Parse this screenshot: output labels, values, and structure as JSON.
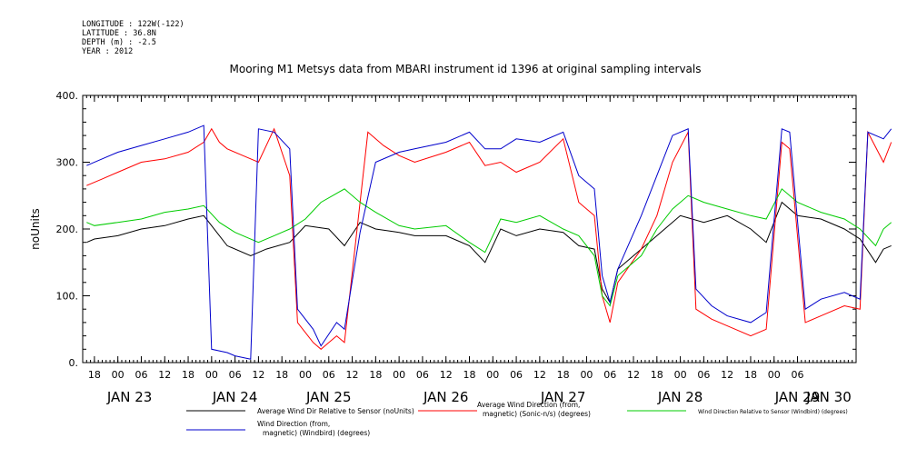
{
  "meta": {
    "longitude": "LONGITUDE : 122W(-122)",
    "latitude": "LATITUDE : 36.8N",
    "depth": "DEPTH (m) : -2.5",
    "year": "YEAR : 2012"
  },
  "chart_data": {
    "type": "line",
    "title": "Mooring M1 Metsys data from MBARI instrument id 1396 at original sampling intervals",
    "ylabel": "noUnits",
    "ylim": [
      0,
      400
    ],
    "yticks": [
      0,
      100,
      200,
      300,
      400
    ],
    "ytick_labels": [
      "0.",
      "100.",
      "200.",
      "300.",
      "400."
    ],
    "xlim_hours": [
      -9,
      189
    ],
    "x_hour_ticks": [
      "18",
      "00",
      "06",
      "12",
      "18",
      "00",
      "06",
      "12",
      "18",
      "00",
      "06",
      "12",
      "18",
      "00",
      "06",
      "12",
      "18",
      "00",
      "06",
      "12",
      "18",
      "00",
      "06",
      "12",
      "18",
      "00",
      "06",
      "12",
      "18",
      "00",
      "06"
    ],
    "day_labels": [
      {
        "label": "JAN 23",
        "hour": 0
      },
      {
        "label": "JAN 24",
        "hour": 24
      },
      {
        "label": "JAN 25",
        "hour": 54
      },
      {
        "label": "JAN 26",
        "hour": 84
      },
      {
        "label": "JAN 27",
        "hour": 114
      },
      {
        "label": "JAN 28",
        "hour": 144
      },
      {
        "label": "JAN 29",
        "hour": 174
      },
      {
        "label": "JAN 30",
        "hour": 198
      }
    ],
    "series": [
      {
        "name": "Average Wind Dir Relative to Sensor (noUnits)",
        "color": "#000000",
        "points": [
          [
            -8,
            180
          ],
          [
            -6,
            185
          ],
          [
            0,
            190
          ],
          [
            6,
            200
          ],
          [
            12,
            205
          ],
          [
            18,
            215
          ],
          [
            22,
            220
          ],
          [
            28,
            175
          ],
          [
            34,
            160
          ],
          [
            38,
            170
          ],
          [
            44,
            180
          ],
          [
            48,
            205
          ],
          [
            54,
            200
          ],
          [
            58,
            175
          ],
          [
            62,
            210
          ],
          [
            66,
            200
          ],
          [
            72,
            195
          ],
          [
            76,
            190
          ],
          [
            84,
            190
          ],
          [
            90,
            175
          ],
          [
            94,
            150
          ],
          [
            98,
            200
          ],
          [
            102,
            190
          ],
          [
            108,
            200
          ],
          [
            114,
            195
          ],
          [
            118,
            175
          ],
          [
            122,
            170
          ],
          [
            124,
            110
          ],
          [
            126,
            90
          ],
          [
            128,
            140
          ],
          [
            134,
            170
          ],
          [
            140,
            200
          ],
          [
            144,
            220
          ],
          [
            150,
            210
          ],
          [
            156,
            220
          ],
          [
            162,
            200
          ],
          [
            166,
            180
          ],
          [
            170,
            240
          ],
          [
            174,
            220
          ],
          [
            180,
            215
          ],
          [
            186,
            200
          ],
          [
            190,
            185
          ],
          [
            194,
            150
          ],
          [
            196,
            170
          ],
          [
            198,
            175
          ]
        ]
      },
      {
        "name": "Average Wind Direction (from, magnetic) (Sonic-n/s) (degrees)",
        "color": "#ff0000",
        "points": [
          [
            -8,
            265
          ],
          [
            -4,
            275
          ],
          [
            0,
            285
          ],
          [
            6,
            300
          ],
          [
            12,
            305
          ],
          [
            18,
            315
          ],
          [
            22,
            330
          ],
          [
            24,
            350
          ],
          [
            26,
            330
          ],
          [
            28,
            320
          ],
          [
            32,
            310
          ],
          [
            36,
            300
          ],
          [
            40,
            350
          ],
          [
            44,
            280
          ],
          [
            46,
            60
          ],
          [
            50,
            30
          ],
          [
            52,
            20
          ],
          [
            56,
            40
          ],
          [
            58,
            30
          ],
          [
            64,
            345
          ],
          [
            68,
            325
          ],
          [
            72,
            310
          ],
          [
            76,
            300
          ],
          [
            84,
            315
          ],
          [
            90,
            330
          ],
          [
            94,
            295
          ],
          [
            98,
            300
          ],
          [
            102,
            285
          ],
          [
            108,
            300
          ],
          [
            114,
            335
          ],
          [
            118,
            240
          ],
          [
            122,
            220
          ],
          [
            124,
            100
          ],
          [
            126,
            60
          ],
          [
            128,
            120
          ],
          [
            134,
            170
          ],
          [
            138,
            220
          ],
          [
            142,
            300
          ],
          [
            146,
            345
          ],
          [
            148,
            80
          ],
          [
            152,
            65
          ],
          [
            156,
            55
          ],
          [
            162,
            40
          ],
          [
            166,
            50
          ],
          [
            170,
            330
          ],
          [
            172,
            320
          ],
          [
            176,
            60
          ],
          [
            180,
            70
          ],
          [
            186,
            85
          ],
          [
            190,
            80
          ],
          [
            192,
            345
          ],
          [
            196,
            300
          ],
          [
            198,
            330
          ]
        ]
      },
      {
        "name": "Wind Direction Relative to Sensor (Windbird) (degrees)",
        "color": "#00cc00",
        "points": [
          [
            -8,
            210
          ],
          [
            -6,
            205
          ],
          [
            0,
            210
          ],
          [
            6,
            215
          ],
          [
            12,
            225
          ],
          [
            18,
            230
          ],
          [
            22,
            235
          ],
          [
            26,
            210
          ],
          [
            30,
            195
          ],
          [
            36,
            180
          ],
          [
            40,
            190
          ],
          [
            44,
            200
          ],
          [
            48,
            215
          ],
          [
            52,
            240
          ],
          [
            58,
            260
          ],
          [
            62,
            240
          ],
          [
            66,
            225
          ],
          [
            72,
            205
          ],
          [
            76,
            200
          ],
          [
            84,
            205
          ],
          [
            90,
            180
          ],
          [
            94,
            165
          ],
          [
            98,
            215
          ],
          [
            102,
            210
          ],
          [
            108,
            220
          ],
          [
            114,
            200
          ],
          [
            118,
            190
          ],
          [
            122,
            160
          ],
          [
            124,
            100
          ],
          [
            126,
            85
          ],
          [
            128,
            130
          ],
          [
            134,
            160
          ],
          [
            138,
            200
          ],
          [
            142,
            230
          ],
          [
            146,
            250
          ],
          [
            150,
            240
          ],
          [
            156,
            230
          ],
          [
            162,
            220
          ],
          [
            166,
            215
          ],
          [
            170,
            260
          ],
          [
            174,
            240
          ],
          [
            180,
            225
          ],
          [
            186,
            215
          ],
          [
            190,
            200
          ],
          [
            194,
            175
          ],
          [
            196,
            200
          ],
          [
            198,
            210
          ]
        ]
      },
      {
        "name": "Wind Direction (from, magnetic) (Windbird) (degrees)",
        "color": "#0000cc",
        "points": [
          [
            -8,
            295
          ],
          [
            -4,
            305
          ],
          [
            0,
            315
          ],
          [
            6,
            325
          ],
          [
            12,
            335
          ],
          [
            18,
            345
          ],
          [
            22,
            355
          ],
          [
            24,
            20
          ],
          [
            28,
            15
          ],
          [
            30,
            10
          ],
          [
            34,
            5
          ],
          [
            36,
            350
          ],
          [
            40,
            345
          ],
          [
            44,
            320
          ],
          [
            46,
            80
          ],
          [
            50,
            50
          ],
          [
            52,
            25
          ],
          [
            56,
            60
          ],
          [
            58,
            50
          ],
          [
            62,
            195
          ],
          [
            66,
            300
          ],
          [
            72,
            315
          ],
          [
            76,
            320
          ],
          [
            84,
            330
          ],
          [
            90,
            345
          ],
          [
            94,
            320
          ],
          [
            98,
            320
          ],
          [
            102,
            335
          ],
          [
            108,
            330
          ],
          [
            114,
            345
          ],
          [
            118,
            280
          ],
          [
            122,
            260
          ],
          [
            124,
            130
          ],
          [
            126,
            90
          ],
          [
            128,
            140
          ],
          [
            134,
            220
          ],
          [
            138,
            280
          ],
          [
            142,
            340
          ],
          [
            146,
            350
          ],
          [
            148,
            110
          ],
          [
            152,
            85
          ],
          [
            156,
            70
          ],
          [
            162,
            60
          ],
          [
            166,
            75
          ],
          [
            170,
            350
          ],
          [
            172,
            345
          ],
          [
            176,
            80
          ],
          [
            180,
            95
          ],
          [
            186,
            105
          ],
          [
            190,
            95
          ],
          [
            192,
            345
          ],
          [
            196,
            335
          ],
          [
            198,
            350
          ]
        ]
      }
    ],
    "legend": {
      "placement": "bottom",
      "entries": [
        {
          "label_lines": [
            "Average Wind Dir Relative to Sensor (noUnits)"
          ],
          "color": "#000000"
        },
        {
          "label_lines": [
            "Average Wind Direction (from,",
            "magnetic) (Sonic-n/s) (degrees)"
          ],
          "color": "#ff0000"
        },
        {
          "label_lines": [
            "Wind Direction Relative to Sensor (Windbird) (degrees)"
          ],
          "color": "#00cc00"
        },
        {
          "label_lines": [
            "Wind Direction (from,",
            "magnetic) (Windbird) (degrees)"
          ],
          "color": "#0000cc"
        }
      ]
    }
  }
}
